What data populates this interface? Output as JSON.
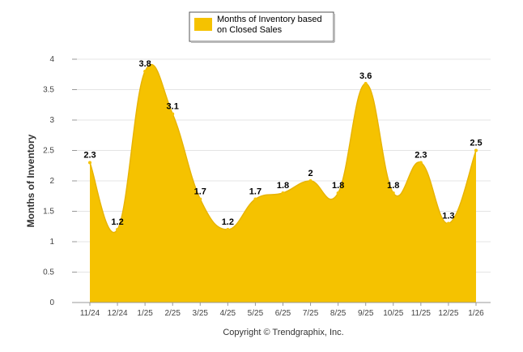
{
  "chart_data": {
    "type": "area",
    "title": "",
    "xlabel": "",
    "ylabel": "Months of Inventory",
    "ylim": [
      0,
      4
    ],
    "yticks": [
      "0",
      "0.5",
      "1",
      "1.5",
      "2",
      "2.5",
      "3",
      "3.5",
      "4"
    ],
    "categories": [
      "11/24",
      "12/24",
      "1/25",
      "2/25",
      "3/25",
      "4/25",
      "5/25",
      "6/25",
      "7/25",
      "8/25",
      "9/25",
      "10/25",
      "11/25",
      "12/25",
      "1/26"
    ],
    "series": [
      {
        "name": "Months of Inventory based on Closed Sales",
        "values": [
          2.3,
          1.2,
          3.8,
          3.1,
          1.7,
          1.2,
          1.7,
          1.8,
          2,
          1.8,
          3.6,
          1.8,
          2.3,
          1.3,
          2.5
        ],
        "labels": [
          "2.3",
          "1.2",
          "3.8",
          "3.1",
          "1.7",
          "1.2",
          "1.7",
          "1.8",
          "2",
          "1.8",
          "3.6",
          "1.8",
          "2.3",
          "1.3",
          "2.5"
        ],
        "color": "#F5C200"
      }
    ],
    "legend": {
      "position": "top-center",
      "line1": "Months of Inventory based",
      "line2": "on Closed Sales"
    },
    "grid": true
  },
  "footer": {
    "copyright": "Copyright © Trendgraphix, Inc."
  },
  "colors": {
    "fill": "#F5C200",
    "grid": "#E4E4E4",
    "axis": "#999999"
  }
}
